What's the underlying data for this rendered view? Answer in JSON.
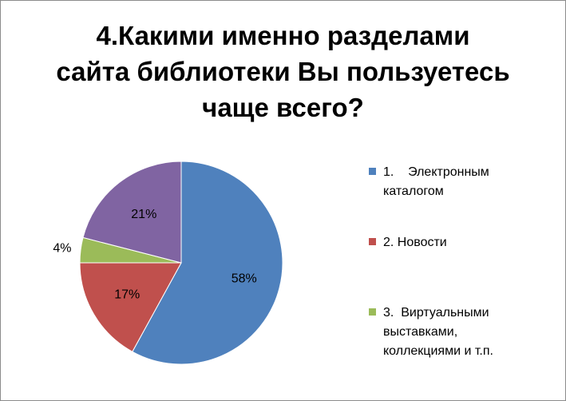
{
  "chart_data": {
    "type": "pie",
    "title_lines": [
      "4.Какими именно разделами",
      "сайта библиотеки Вы пользуетесь",
      "чаще всего?"
    ],
    "slices": [
      {
        "name": "1.    Электронным каталогом",
        "value": 58,
        "label": "58%",
        "color": "#4F81BD"
      },
      {
        "name": "2. Новости",
        "value": 17,
        "label": "17%",
        "color": "#C0504D"
      },
      {
        "name": "3.  Виртуальными выставками, коллекциями и т.п.",
        "value": 4,
        "label": "4%",
        "color": "#9BBB59"
      },
      {
        "name": "",
        "value": 21,
        "label": "21%",
        "color": "#8064A2"
      }
    ],
    "legend_position": "right"
  },
  "legend": [
    {
      "lines": [
        "1.    Электронным",
        "каталогом"
      ],
      "color": "#4F81BD"
    },
    {
      "lines": [
        "2. Новости"
      ],
      "color": "#C0504D"
    },
    {
      "lines": [
        "3.  Виртуальными",
        "выставками,",
        "коллекциями и т.п."
      ],
      "color": "#9BBB59"
    }
  ]
}
